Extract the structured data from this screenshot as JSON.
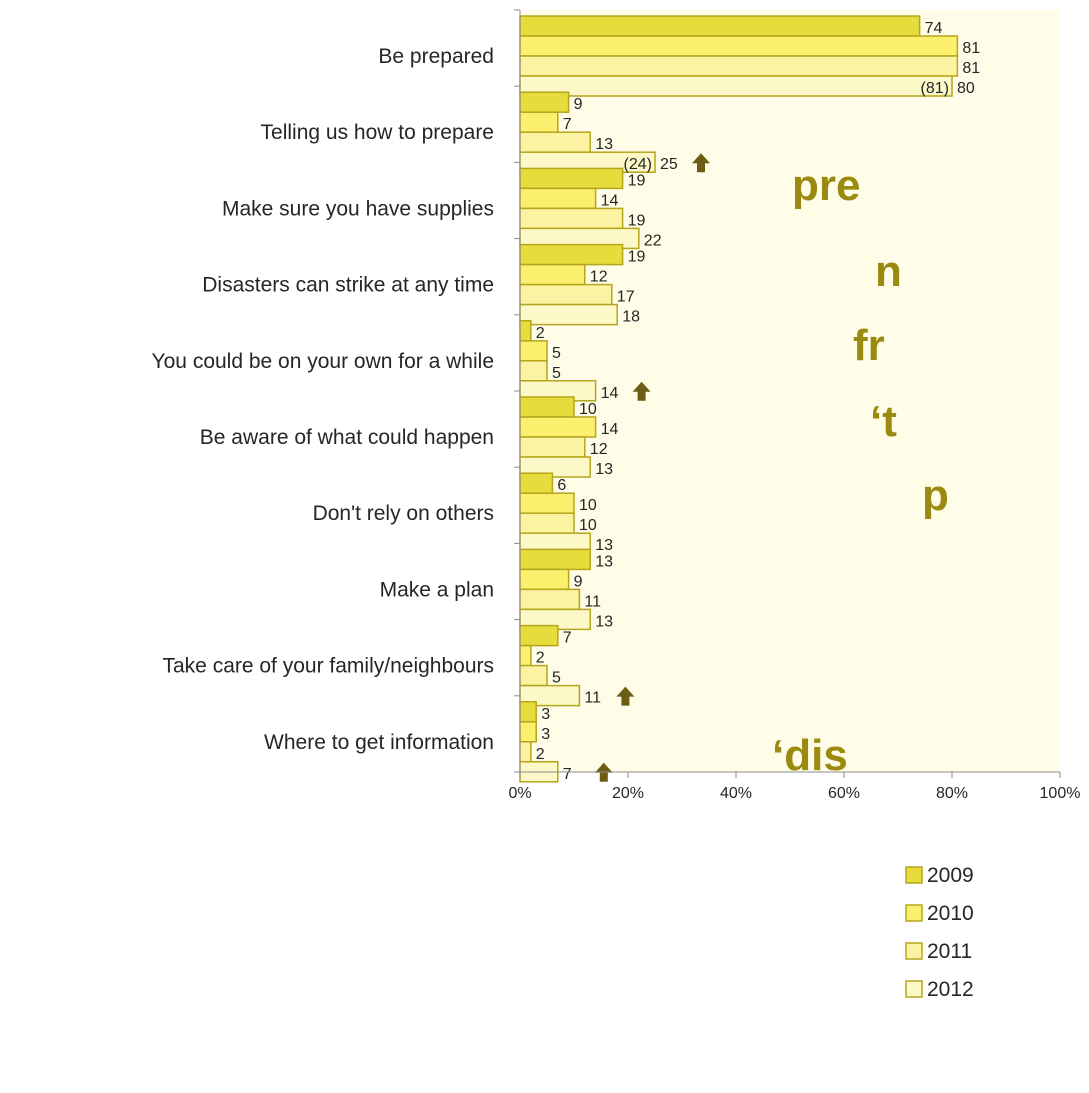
{
  "chart_data": {
    "type": "bar",
    "orientation": "horizontal",
    "categories": [
      "Be prepared",
      "Telling us how to prepare",
      "Make sure you have supplies",
      "Disasters can strike at any time",
      "You could be on your own for a while",
      "Be aware of what could happen",
      "Don't rely on others",
      "Make a plan",
      "Take care of your family/neighbours",
      "Where to get information"
    ],
    "series": [
      {
        "name": "2009",
        "color": "#e6dc3c",
        "values": [
          74,
          9,
          19,
          19,
          2,
          10,
          6,
          13,
          7,
          3
        ]
      },
      {
        "name": "2010",
        "color": "#faf06e",
        "values": [
          81,
          7,
          14,
          12,
          5,
          14,
          10,
          9,
          2,
          3
        ]
      },
      {
        "name": "2011",
        "color": "#fcf3a2",
        "values": [
          81,
          13,
          19,
          17,
          5,
          12,
          10,
          11,
          5,
          2
        ]
      },
      {
        "name": "2012",
        "color": "#fdf8c8",
        "values": [
          80,
          25,
          22,
          18,
          14,
          13,
          13,
          13,
          11,
          7
        ]
      }
    ],
    "bracket_labels": [
      {
        "category_index": 0,
        "text": "(81)"
      },
      {
        "category_index": 1,
        "text": "(24)"
      }
    ],
    "up_arrows": [
      1,
      4,
      8,
      9
    ],
    "xlim": [
      0,
      100
    ],
    "x_ticks": [
      "0%",
      "20%",
      "40%",
      "60%",
      "80%",
      "100%"
    ],
    "legend_position": "bottom-right",
    "colors": {
      "border": "#b5a51c",
      "arrow": "#6b5e12",
      "plot_background": "#fffce8"
    }
  },
  "side_text": [
    "pre",
    "n",
    "fr",
    "‘t",
    "p",
    "‘dis"
  ]
}
